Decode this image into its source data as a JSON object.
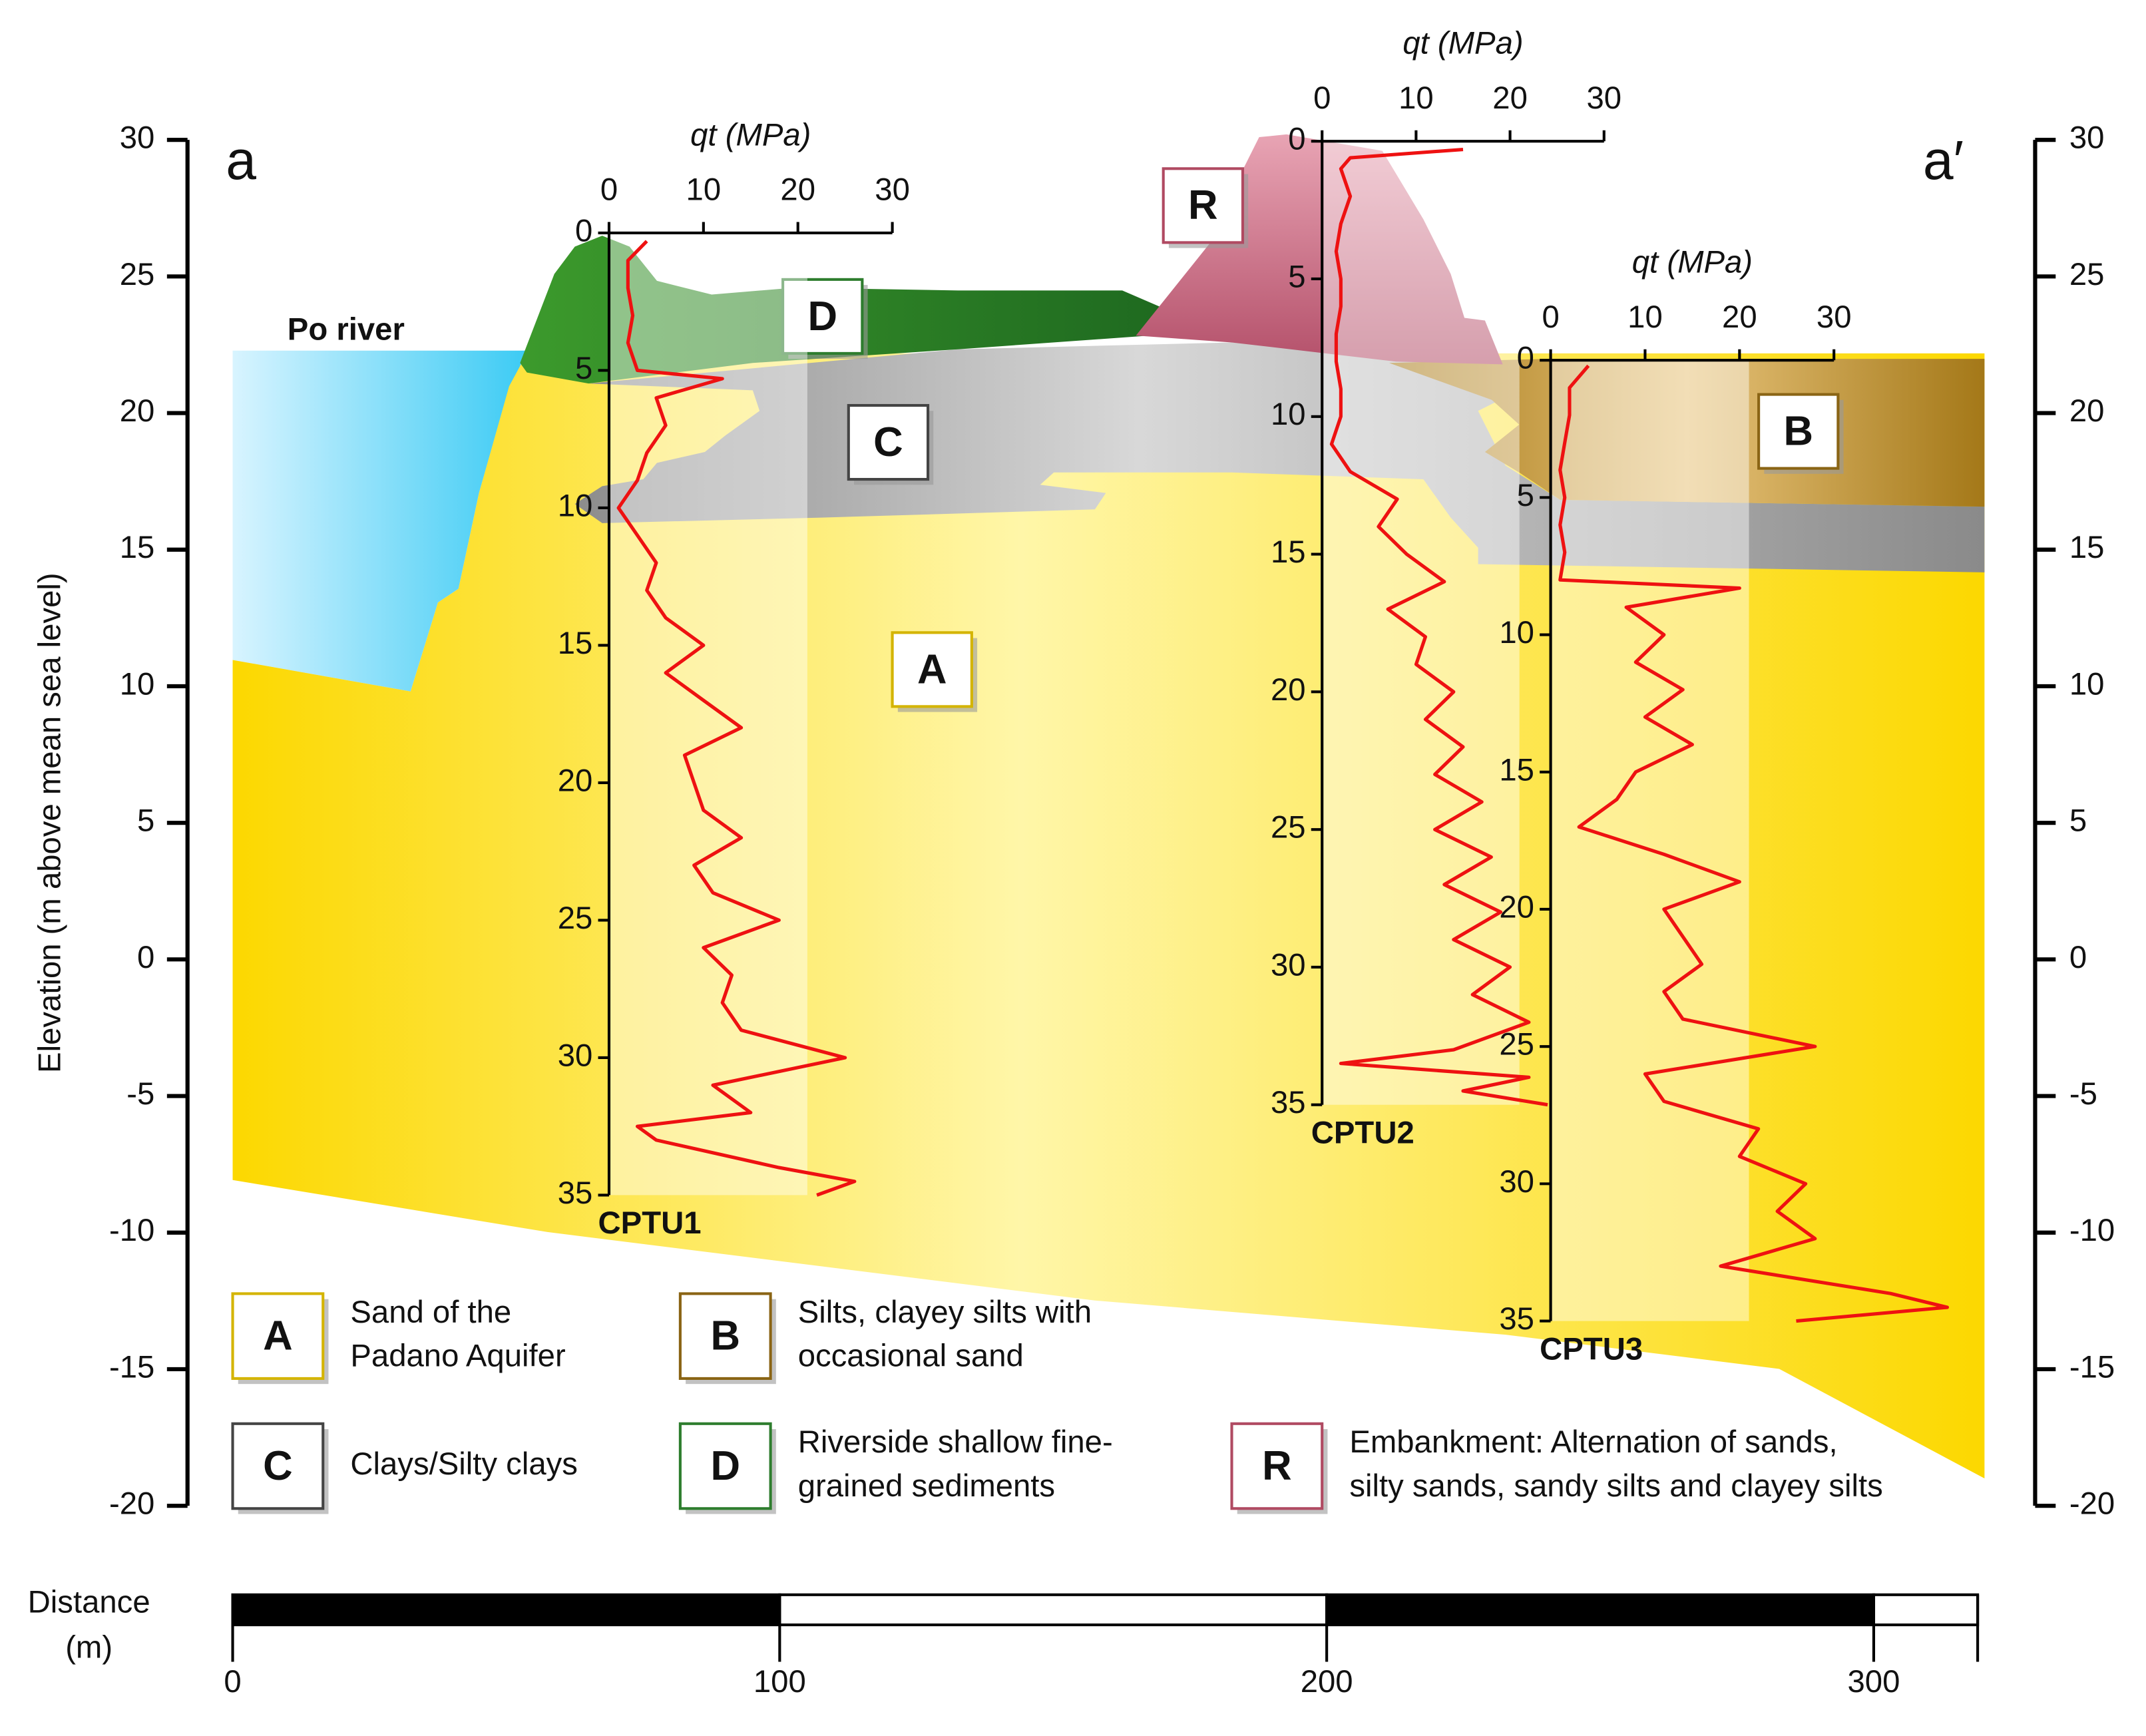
{
  "chart_data": [
    {
      "type": "section",
      "ylabel": "Elevation (m above mean sea level)",
      "ylim": [
        -20,
        30
      ],
      "yticks": [
        -20,
        -15,
        -10,
        -5,
        0,
        5,
        10,
        15,
        20,
        25,
        30
      ],
      "left_label": "a",
      "right_label": "a′",
      "river": "Po river",
      "units": [
        {
          "key": "A",
          "color": "#d4b400",
          "lines": [
            "Sand  of the",
            "Padano Aquifer"
          ]
        },
        {
          "key": "B",
          "color": "#8a6414",
          "lines": [
            "Silts, clayey silts with",
            "occasional sand"
          ]
        },
        {
          "key": "C",
          "color": "#444444",
          "lines": [
            "Clays/Silty clays"
          ]
        },
        {
          "key": "D",
          "color": "#2e7d2e",
          "lines": [
            "Riverside shallow fine-",
            "grained sediments"
          ]
        },
        {
          "key": "R",
          "color": "#b04a62",
          "lines": [
            "Embankment: Alternation of sands,",
            "silty sands, sandy silts and clayey silts"
          ]
        }
      ],
      "xlabel": [
        "Distance",
        "(m)"
      ],
      "xlim": [
        0,
        319
      ],
      "xticks": [
        0,
        100,
        200,
        300
      ]
    },
    {
      "type": "line",
      "name": "CPTU1",
      "xlabel": "qt (MPa)",
      "color": "#ee1111",
      "xlim": [
        0,
        30
      ],
      "xticks": [
        0,
        10,
        20,
        30
      ],
      "ylim": [
        0,
        35
      ],
      "yticks": [
        0,
        5,
        10,
        15,
        20,
        25,
        30,
        35
      ],
      "depth": [
        0.3,
        1,
        2,
        3,
        4,
        5,
        5.3,
        6,
        7,
        8,
        9,
        10,
        11,
        12,
        13,
        14,
        15,
        16,
        17,
        18,
        19,
        20,
        21,
        22,
        23,
        24,
        25,
        26,
        27,
        28,
        29,
        30,
        31,
        32,
        32.5,
        33,
        34,
        34.5,
        35
      ],
      "values": [
        4,
        2,
        2,
        2.5,
        2,
        3,
        12,
        5,
        6,
        4,
        3,
        1,
        3,
        5,
        4,
        6,
        10,
        6,
        10,
        14,
        8,
        9,
        10,
        14,
        9,
        11,
        18,
        10,
        13,
        12,
        14,
        25,
        11,
        15,
        3,
        5,
        18,
        26,
        22
      ]
    },
    {
      "type": "line",
      "name": "CPTU2",
      "xlabel": "qt (MPa)",
      "color": "#ee1111",
      "xlim": [
        0,
        30
      ],
      "xticks": [
        0,
        10,
        20,
        30
      ],
      "ylim": [
        0,
        35
      ],
      "yticks": [
        0,
        5,
        10,
        15,
        20,
        25,
        30,
        35
      ],
      "depth": [
        0.3,
        0.6,
        1,
        2,
        3,
        4,
        5,
        6,
        7,
        8,
        9,
        10,
        11,
        12,
        13,
        14,
        15,
        16,
        17,
        18,
        19,
        20,
        21,
        22,
        23,
        24,
        25,
        26,
        27,
        28,
        29,
        30,
        31,
        32,
        33,
        33.5,
        34,
        34.5,
        35
      ],
      "values": [
        15,
        3,
        2,
        3,
        2,
        1.5,
        2,
        2,
        1.5,
        1.5,
        2,
        2,
        1,
        3,
        8,
        6,
        9,
        13,
        7,
        11,
        10,
        14,
        11,
        15,
        12,
        17,
        12,
        18,
        13,
        19,
        14,
        20,
        16,
        22,
        14,
        2,
        22,
        15,
        24
      ]
    },
    {
      "type": "line",
      "name": "CPTU3",
      "xlabel": "qt (MPa)",
      "color": "#ee1111",
      "xlim": [
        0,
        30
      ],
      "xticks": [
        0,
        10,
        20,
        30
      ],
      "ylim": [
        0,
        35
      ],
      "yticks": [
        0,
        5,
        10,
        15,
        20,
        25,
        30,
        35
      ],
      "depth": [
        0.2,
        1,
        2,
        3,
        4,
        5,
        6,
        7,
        8,
        8.3,
        9,
        10,
        11,
        12,
        13,
        14,
        15,
        16,
        17,
        18,
        19,
        20,
        21,
        22,
        23,
        24,
        25,
        26,
        27,
        28,
        29,
        30,
        31,
        32,
        33,
        34,
        34.5,
        35
      ],
      "values": [
        4,
        2,
        2,
        1.5,
        1,
        1.5,
        1,
        1.5,
        1,
        20,
        8,
        12,
        9,
        14,
        10,
        15,
        9,
        7,
        3,
        12,
        20,
        12,
        14,
        16,
        12,
        14,
        28,
        10,
        12,
        22,
        20,
        27,
        24,
        28,
        18,
        36,
        42,
        26
      ]
    }
  ]
}
